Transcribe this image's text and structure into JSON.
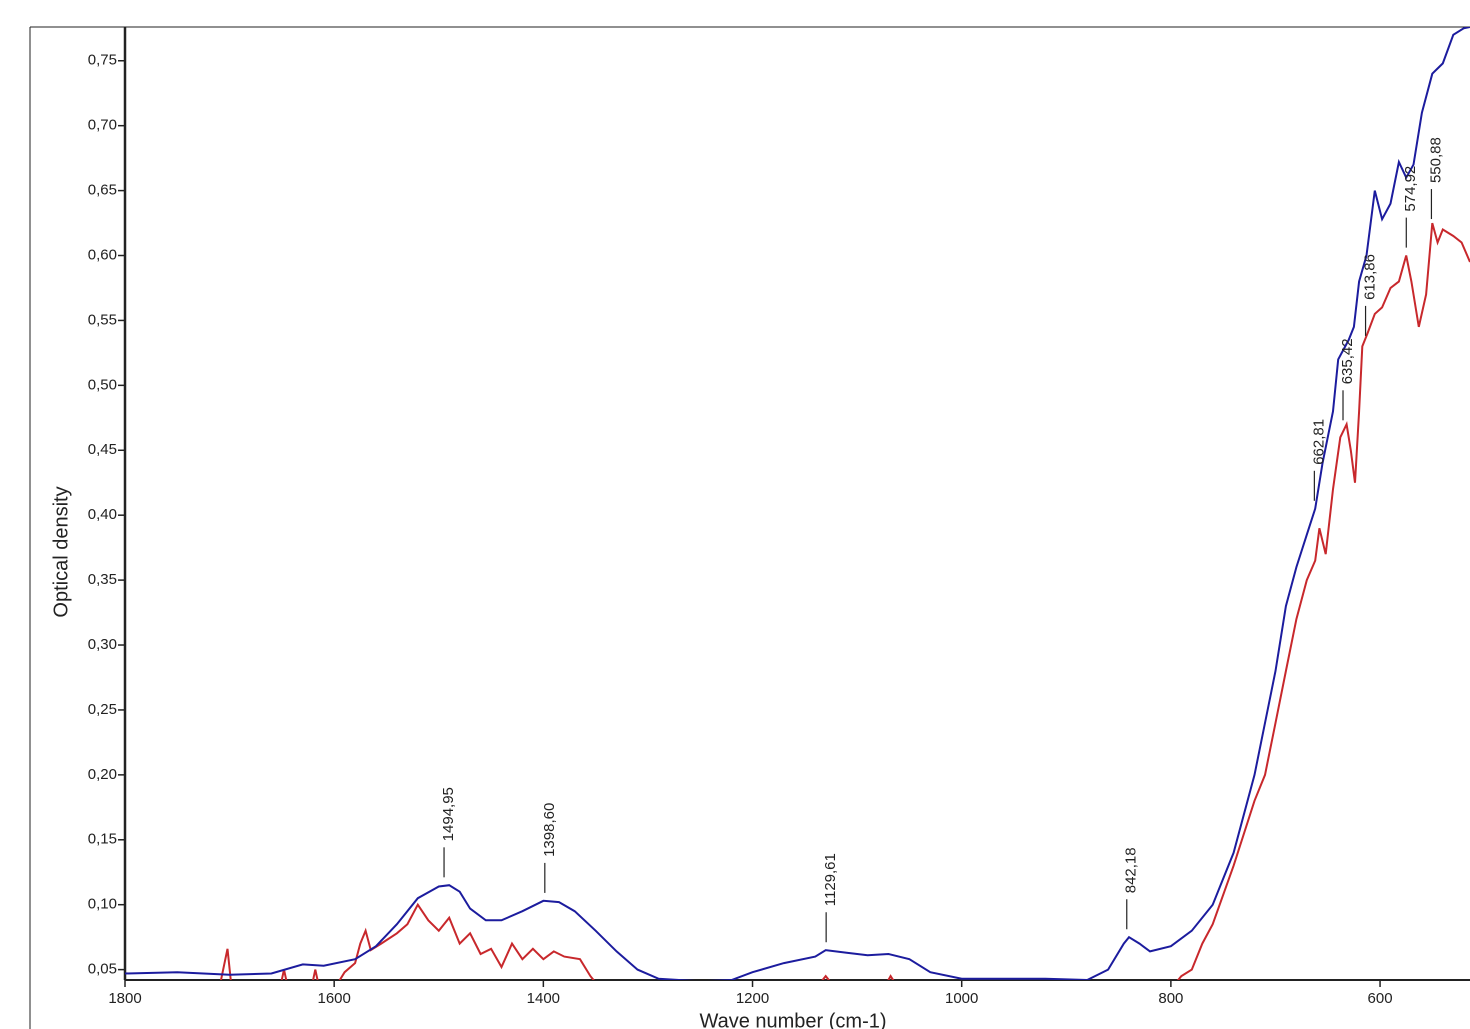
{
  "chart_data": {
    "type": "line",
    "x_label": "Wave number (cm-1)",
    "y_label": "Optical density",
    "xlim": [
      1800,
      514
    ],
    "ylim": [
      0.042,
      0.776
    ],
    "xticks": [
      1800,
      1600,
      1400,
      1200,
      1000,
      800,
      600
    ],
    "yticks": [
      {
        "value": 0.05,
        "label": "0,05"
      },
      {
        "value": 0.1,
        "label": "0,10"
      },
      {
        "value": 0.15,
        "label": "0,15"
      },
      {
        "value": 0.2,
        "label": "0,20"
      },
      {
        "value": 0.25,
        "label": "0,25"
      },
      {
        "value": 0.3,
        "label": "0,30"
      },
      {
        "value": 0.35,
        "label": "0,35"
      },
      {
        "value": 0.4,
        "label": "0,40"
      },
      {
        "value": 0.45,
        "label": "0,45"
      },
      {
        "value": 0.5,
        "label": "0,50"
      },
      {
        "value": 0.55,
        "label": "0,55"
      },
      {
        "value": 0.6,
        "label": "0,60"
      },
      {
        "value": 0.65,
        "label": "0,65"
      },
      {
        "value": 0.7,
        "label": "0,70"
      },
      {
        "value": 0.75,
        "label": "0,75"
      }
    ],
    "series": [
      {
        "color": "#1c1c9e",
        "x": [
          1800,
          1750,
          1700,
          1660,
          1630,
          1610,
          1580,
          1560,
          1540,
          1520,
          1500,
          1490,
          1480,
          1470,
          1455,
          1440,
          1420,
          1400,
          1385,
          1370,
          1350,
          1330,
          1310,
          1290,
          1250,
          1220,
          1200,
          1170,
          1140,
          1130,
          1110,
          1090,
          1070,
          1050,
          1030,
          1000,
          960,
          920,
          880,
          860,
          845,
          840,
          830,
          820,
          800,
          780,
          760,
          740,
          720,
          700,
          690,
          680,
          670,
          662,
          655,
          645,
          640,
          630,
          625,
          620,
          613,
          605,
          598,
          590,
          582,
          575,
          568,
          560,
          550,
          540,
          530,
          520,
          514
        ],
        "values": [
          0.047,
          0.048,
          0.046,
          0.047,
          0.054,
          0.053,
          0.058,
          0.068,
          0.085,
          0.105,
          0.114,
          0.115,
          0.11,
          0.097,
          0.088,
          0.088,
          0.095,
          0.103,
          0.102,
          0.095,
          0.08,
          0.064,
          0.05,
          0.043,
          0.041,
          0.042,
          0.048,
          0.055,
          0.06,
          0.065,
          0.063,
          0.061,
          0.062,
          0.058,
          0.048,
          0.043,
          0.043,
          0.043,
          0.042,
          0.05,
          0.07,
          0.075,
          0.07,
          0.064,
          0.068,
          0.08,
          0.1,
          0.14,
          0.2,
          0.28,
          0.33,
          0.36,
          0.385,
          0.405,
          0.44,
          0.48,
          0.52,
          0.535,
          0.545,
          0.58,
          0.6,
          0.65,
          0.628,
          0.64,
          0.672,
          0.66,
          0.67,
          0.71,
          0.74,
          0.748,
          0.77,
          0.775,
          0.776
        ]
      },
      {
        "color": "#c8282c",
        "x": [
          1710,
          1702,
          1698,
          1680,
          1652,
          1648,
          1644,
          1630,
          1622,
          1618,
          1614,
          1607,
          1600,
          1590,
          1580,
          1575,
          1570,
          1565,
          1555,
          1540,
          1530,
          1520,
          1510,
          1500,
          1490,
          1480,
          1470,
          1460,
          1450,
          1440,
          1430,
          1420,
          1410,
          1400,
          1390,
          1380,
          1365,
          1355,
          1345,
          1250,
          1140,
          1130,
          1120,
          1100,
          1075,
          1068,
          1060,
          900,
          800,
          790,
          780,
          770,
          760,
          740,
          720,
          710,
          700,
          690,
          680,
          670,
          662,
          658,
          652,
          645,
          638,
          632,
          628,
          624,
          620,
          617,
          612,
          605,
          598,
          590,
          582,
          575,
          570,
          563,
          556,
          550,
          545,
          540,
          530,
          522,
          514
        ],
        "values": [
          0.035,
          0.066,
          0.035,
          null,
          0.035,
          0.05,
          0.035,
          null,
          0.035,
          0.05,
          0.035,
          null,
          0.035,
          0.048,
          0.055,
          0.07,
          0.08,
          0.065,
          0.07,
          0.078,
          0.085,
          0.1,
          0.088,
          0.08,
          0.09,
          0.07,
          0.078,
          0.062,
          0.066,
          0.052,
          0.07,
          0.058,
          0.066,
          0.058,
          0.064,
          0.06,
          0.058,
          0.045,
          0.035,
          null,
          0.035,
          0.045,
          0.035,
          null,
          0.035,
          0.045,
          0.035,
          null,
          0.035,
          0.045,
          0.05,
          0.07,
          0.085,
          0.13,
          0.18,
          0.2,
          0.24,
          0.28,
          0.32,
          0.35,
          0.365,
          0.39,
          0.37,
          0.42,
          0.46,
          0.47,
          0.45,
          0.425,
          0.48,
          0.53,
          0.54,
          0.555,
          0.56,
          0.575,
          0.58,
          0.6,
          0.58,
          0.545,
          0.57,
          0.625,
          0.61,
          0.62,
          0.615,
          0.61,
          0.595
        ]
      }
    ],
    "annotations": [
      {
        "x": 1494.95,
        "y": 0.118,
        "label": "1494,95"
      },
      {
        "x": 1398.6,
        "y": 0.106,
        "label": "1398,60"
      },
      {
        "x": 1129.61,
        "y": 0.068,
        "label": "1129,61"
      },
      {
        "x": 842.18,
        "y": 0.078,
        "label": "842,18"
      },
      {
        "x": 662.81,
        "y": 0.408,
        "label": "662,81"
      },
      {
        "x": 635.42,
        "y": 0.47,
        "label": "635,42"
      },
      {
        "x": 613.86,
        "y": 0.535,
        "label": "613,86"
      },
      {
        "x": 574.92,
        "y": 0.603,
        "label": "574,92"
      },
      {
        "x": 550.88,
        "y": 0.625,
        "label": "550,88"
      }
    ]
  }
}
